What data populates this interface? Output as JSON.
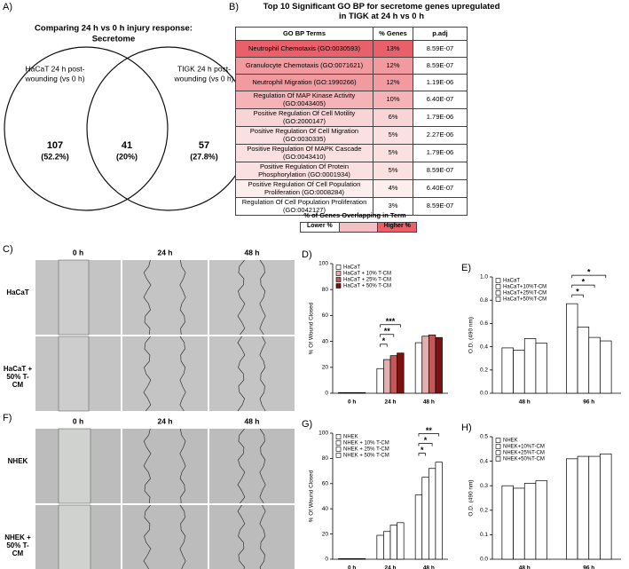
{
  "venn": {
    "panel": "A)",
    "title": [
      "Comparing 24 h vs 0 h injury response:",
      "Secretome"
    ],
    "sets": [
      [
        "HaCaT 24 h post-",
        "wounding (vs 0 h)"
      ],
      [
        "TIGK 24 h post-",
        "wounding (vs 0 h)"
      ]
    ],
    "regions": [
      {
        "count": "107",
        "percent": "(52.2%)"
      },
      {
        "count": "41",
        "percent": "(20%)"
      },
      {
        "count": "57",
        "percent": "(27.8%)"
      }
    ]
  },
  "table": {
    "panel": "B)",
    "title": [
      "Top 10 Significant GO BP for secretome genes upregulated",
      "in TIGK at 24 h vs 0 h"
    ],
    "headers": [
      "GO BP Terms",
      "% Genes",
      "p.adj"
    ],
    "rows": [
      [
        "Neutrophil Chemotaxis (GO:0030593)",
        "13%",
        "8.59E-07"
      ],
      [
        "Granulocyte Chemotaxis (GO:0071621)",
        "12%",
        "8.59E-07"
      ],
      [
        "Neutrophil Migration (GO:1990266)",
        "12%",
        "1.19E-06"
      ],
      [
        "Regulation Of MAP Kinase Activity (GO:0043405)",
        "10%",
        "6.40E-07"
      ],
      [
        "Positive Regulation Of Cell Motility (GO:2000147)",
        "6%",
        "1.79E-06"
      ],
      [
        "Positive Regulation Of Cell Migration (GO:0030335)",
        "5%",
        "2.27E-06"
      ],
      [
        "Positive Regulation Of MAPK Cascade (GO:0043410)",
        "5%",
        "1.79E-06"
      ],
      [
        "Positive Regulation Of Protein Phosphorylation (GO:0001934)",
        "5%",
        "8.59E-07"
      ],
      [
        "Positive Regulation Of Cell Population Proliferation (GO:0008284)",
        "4%",
        "6.40E-07"
      ],
      [
        "Regulation Of Cell Population Proliferation (GO:0042127)",
        "3%",
        "8.59E-07"
      ]
    ],
    "row_colors": [
      "#e8606a",
      "#f19aa0",
      "#f19aa0",
      "#f5b3b7",
      "#f9d4d6",
      "#fbe0e1",
      "#fbe0e1",
      "#fbe0e1",
      "#fdeeee",
      "#ffffff"
    ],
    "legend": {
      "title": "% of Genes Overlapping in Term",
      "low": "Lower %",
      "high": "Higher %"
    }
  },
  "images": [
    {
      "panel": "C)",
      "columns": [
        "0 h",
        "24 h",
        "48 h"
      ],
      "rows": [
        "HaCaT",
        "HaCaT + 50% T-CM"
      ]
    },
    {
      "panel": "F)",
      "columns": [
        "0 h",
        "24 h",
        "48 h"
      ],
      "rows": [
        "NHEK",
        "NHEK + 50% T-CM"
      ]
    }
  ],
  "chart_data": [
    {
      "type": "bar",
      "panel": "D)",
      "ylabel": "% Of Wound Closed",
      "categories": [
        "0 h",
        "24 h",
        "48 h"
      ],
      "series": [
        {
          "name": "HaCaT",
          "color": "#ffffff",
          "values": [
            0.5,
            19,
            39
          ]
        },
        {
          "name": "HaCaT + 10% T-CM",
          "color": "#e3b0b0",
          "values": [
            0.5,
            26,
            44
          ]
        },
        {
          "name": "HaCaT + 25% T-CM",
          "color": "#c25858",
          "values": [
            0.5,
            29,
            45
          ]
        },
        {
          "name": "HaCaT + 50% T-CM",
          "color": "#7a1212",
          "values": [
            0.5,
            31,
            43
          ]
        }
      ],
      "ylim": [
        0,
        100
      ],
      "yticks": [
        0,
        20,
        40,
        60,
        80,
        100
      ],
      "annotations": [
        "*",
        "**",
        "***"
      ]
    },
    {
      "type": "bar",
      "panel": "E)",
      "ylabel": "O.D. (490 nm)",
      "categories": [
        "48 h",
        "96 h"
      ],
      "series": [
        {
          "name": "HaCaT",
          "color": "#ffffff",
          "values": [
            0.39,
            0.77
          ]
        },
        {
          "name": "HaCaT+10%T-CM",
          "color": "#ffffff",
          "values": [
            0.37,
            0.57
          ]
        },
        {
          "name": "HaCaT+25%T-CM",
          "color": "#ffffff",
          "values": [
            0.47,
            0.48
          ]
        },
        {
          "name": "HaCaT+50%T-CM",
          "color": "#ffffff",
          "values": [
            0.43,
            0.45
          ]
        }
      ],
      "ylim": [
        0,
        1
      ],
      "yticks": [
        {
          "value": 0,
          "label": "0.0"
        },
        0.2,
        0.4,
        0.6,
        0.8,
        {
          "value": 1,
          "label": "1.0"
        }
      ],
      "annotations": [
        "*",
        "*",
        "*"
      ]
    },
    {
      "type": "bar",
      "panel": "G)",
      "ylabel": "% Of Wound Closed",
      "categories": [
        "0 h",
        "24 h",
        "48 h"
      ],
      "series": [
        {
          "name": "NHEK",
          "color": "#ffffff",
          "values": [
            0.5,
            19,
            51
          ]
        },
        {
          "name": "NHEK + 10% T-CM",
          "color": "#ffffff",
          "values": [
            0.5,
            22,
            65
          ]
        },
        {
          "name": "NHEK + 25% T-CM",
          "color": "#ffffff",
          "values": [
            0.5,
            27,
            72
          ]
        },
        {
          "name": "NHEK + 50% T-CM",
          "color": "#ffffff",
          "values": [
            0.5,
            29,
            77
          ]
        }
      ],
      "ylim": [
        0,
        100
      ],
      "yticks": [
        0,
        20,
        40,
        60,
        80,
        100
      ],
      "annotations": [
        "*",
        "*",
        "**"
      ]
    },
    {
      "type": "bar",
      "panel": "H)",
      "ylabel": "O.D. (490 nm)",
      "categories": [
        "48 h",
        "96 h"
      ],
      "series": [
        {
          "name": "NHEK",
          "color": "#ffffff",
          "values": [
            0.3,
            0.41
          ]
        },
        {
          "name": "NHEK+10%T-CM",
          "color": "#ffffff",
          "values": [
            0.29,
            0.42
          ]
        },
        {
          "name": "NHEK+25%T-CM",
          "color": "#ffffff",
          "values": [
            0.31,
            0.42
          ]
        },
        {
          "name": "NHEK+50%T-CM",
          "color": "#ffffff",
          "values": [
            0.32,
            0.43
          ]
        }
      ],
      "ylim": [
        0,
        0.5
      ],
      "yticks": [
        {
          "value": 0,
          "label": "0.0"
        },
        0.1,
        0.2,
        0.3,
        0.4,
        0.5
      ]
    }
  ]
}
